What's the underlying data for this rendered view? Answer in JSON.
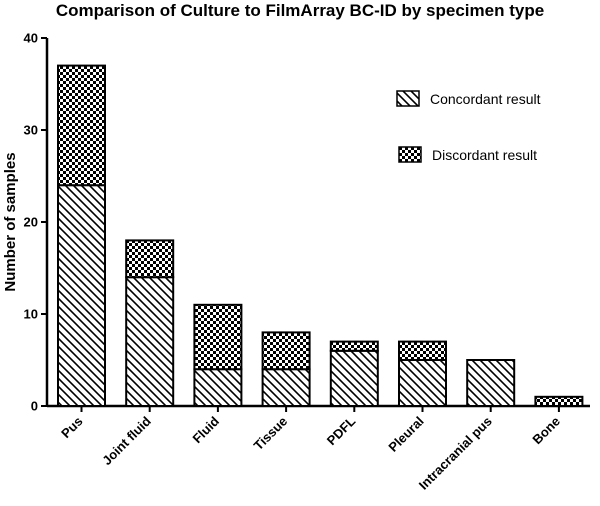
{
  "chart_data": {
    "type": "bar",
    "stacked": true,
    "title": "Comparison of Culture to FilmArray BC-ID by specimen type",
    "xlabel": "",
    "ylabel": "Number of samples",
    "ylim": [
      0,
      40
    ],
    "yticks": [
      0,
      10,
      20,
      30,
      40
    ],
    "grid": false,
    "legend_position": "top-right",
    "categories": [
      "Pus",
      "Joint fluid",
      "Fluid",
      "Tissue",
      "PDFL",
      "Pleural",
      "Intracranial pus",
      "Bone"
    ],
    "series": [
      {
        "name": "Concordant result",
        "pattern": "diagonal-hatch",
        "values": [
          24,
          14,
          4,
          4,
          6,
          5,
          5,
          0
        ]
      },
      {
        "name": "Discordant result",
        "pattern": "checkerboard",
        "values": [
          13,
          4,
          7,
          4,
          1,
          2,
          0,
          1
        ]
      }
    ]
  }
}
